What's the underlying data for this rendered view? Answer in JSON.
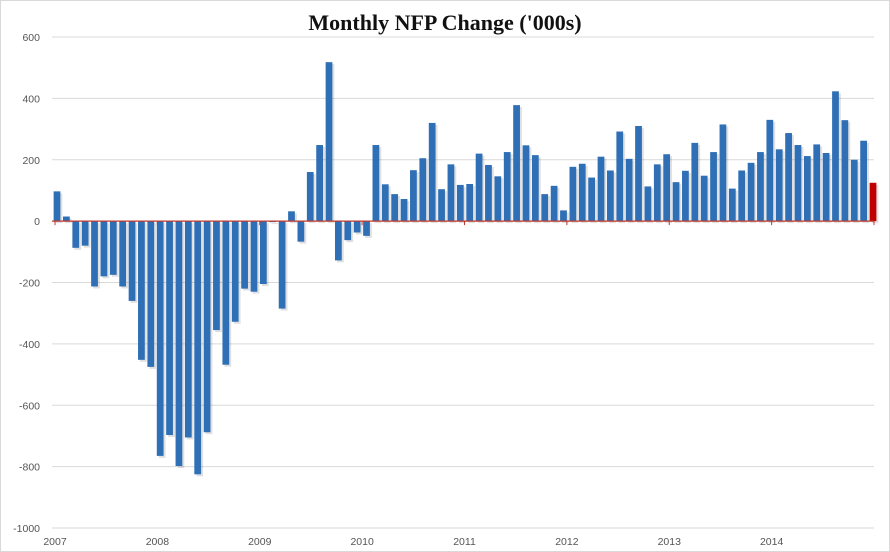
{
  "chart_data": {
    "type": "bar",
    "title": "Monthly NFP Change ('000s)",
    "xlabel": "",
    "ylabel": "",
    "ylim": [
      -1000,
      600
    ],
    "yticks": [
      600,
      400,
      200,
      0,
      -200,
      -400,
      -600,
      -800,
      -1000
    ],
    "ytick_labels": [
      "600",
      "400",
      "200",
      "0",
      "-200",
      "-400",
      "-600",
      "-800",
      "-1000"
    ],
    "xtick_labels": [
      "2007",
      "2008",
      "2009",
      "2010",
      "2011",
      "2012",
      "2013",
      "2014"
    ],
    "grid": true,
    "legend": "none",
    "colors": {
      "bar": "#2e6fb5",
      "latest_bar": "#c00000",
      "zero_line": "#c0392b",
      "grid": "#d9d9d9",
      "axis_text": "#555555"
    },
    "values": [
      97,
      15,
      -87,
      -80,
      -213,
      -180,
      -175,
      -213,
      -260,
      -452,
      -475,
      -765,
      -697,
      -798,
      -705,
      -825,
      -688,
      -355,
      -468,
      -328,
      -220,
      -230,
      -205,
      -3,
      -285,
      32,
      -67,
      160,
      248,
      518,
      -128,
      -62,
      -37,
      -48,
      248,
      120,
      88,
      72,
      166,
      205,
      320,
      104,
      185,
      118,
      121,
      220,
      183,
      146,
      225,
      378,
      247,
      215,
      88,
      115,
      35,
      177,
      187,
      142,
      210,
      165,
      292,
      203,
      310,
      113,
      185,
      218,
      127,
      164,
      255,
      148,
      225,
      315,
      106,
      165,
      190,
      225,
      330,
      234,
      287,
      248,
      212,
      250,
      222,
      423,
      329,
      200,
      262,
      125
    ],
    "highlight_last": true
  }
}
